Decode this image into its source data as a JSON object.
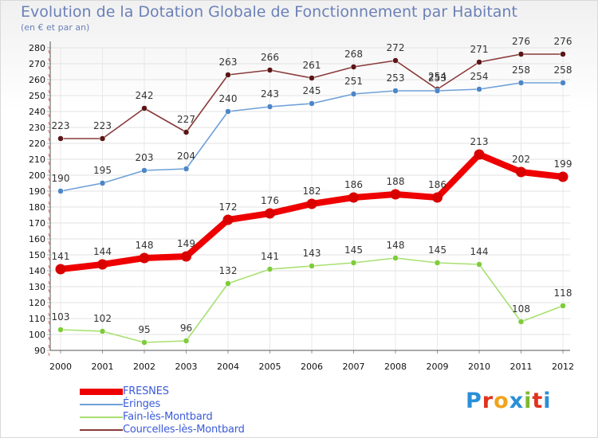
{
  "header": {
    "title": "Evolution de la Dotation Globale de Fonctionnement par Habitant",
    "subtitle": "(en € et par an)"
  },
  "logo": {
    "text": "Proxiti",
    "colors": [
      "#2a8fd8",
      "#e0321c",
      "#f2a21b",
      "#2a8fd8",
      "#7fb82d",
      "#e0321c",
      "#2a8fd8"
    ]
  },
  "chart_data": {
    "type": "line",
    "title": "Evolution de la Dotation Globale de Fonctionnement par Habitant",
    "subtitle": "(en € et par an)",
    "xlabel": "",
    "ylabel": "",
    "ylim": [
      90,
      280
    ],
    "y_ticks": [
      90,
      100,
      110,
      120,
      130,
      140,
      150,
      160,
      170,
      180,
      190,
      200,
      210,
      220,
      230,
      240,
      250,
      260,
      270,
      280
    ],
    "categories": [
      "2000",
      "2001",
      "2002",
      "2003",
      "2004",
      "2005",
      "2006",
      "2007",
      "2008",
      "2009",
      "2010",
      "2011",
      "2012"
    ],
    "grid": true,
    "legend_position": "bottom-left",
    "series": [
      {
        "name": "FRESNES",
        "color": "#ee0000",
        "marker": "#d90000",
        "values": [
          141,
          144,
          148,
          149,
          172,
          176,
          182,
          186,
          188,
          186,
          213,
          202,
          199
        ]
      },
      {
        "name": "Éringes",
        "color": "#6fa0d8",
        "marker": "#4d86c8",
        "values": [
          190,
          195,
          203,
          204,
          240,
          243,
          245,
          251,
          253,
          253,
          254,
          258,
          258
        ]
      },
      {
        "name": "Fain-lès-Montbard",
        "color": "#a8e070",
        "marker": "#7fcc3a",
        "values": [
          103,
          102,
          95,
          96,
          132,
          141,
          143,
          145,
          148,
          145,
          144,
          108,
          118
        ]
      },
      {
        "name": "Courcelles-lès-Montbard",
        "color": "#8a3a3a",
        "marker": "#5a1616",
        "values": [
          223,
          223,
          242,
          227,
          263,
          266,
          261,
          268,
          272,
          254,
          271,
          276,
          276
        ]
      }
    ]
  }
}
